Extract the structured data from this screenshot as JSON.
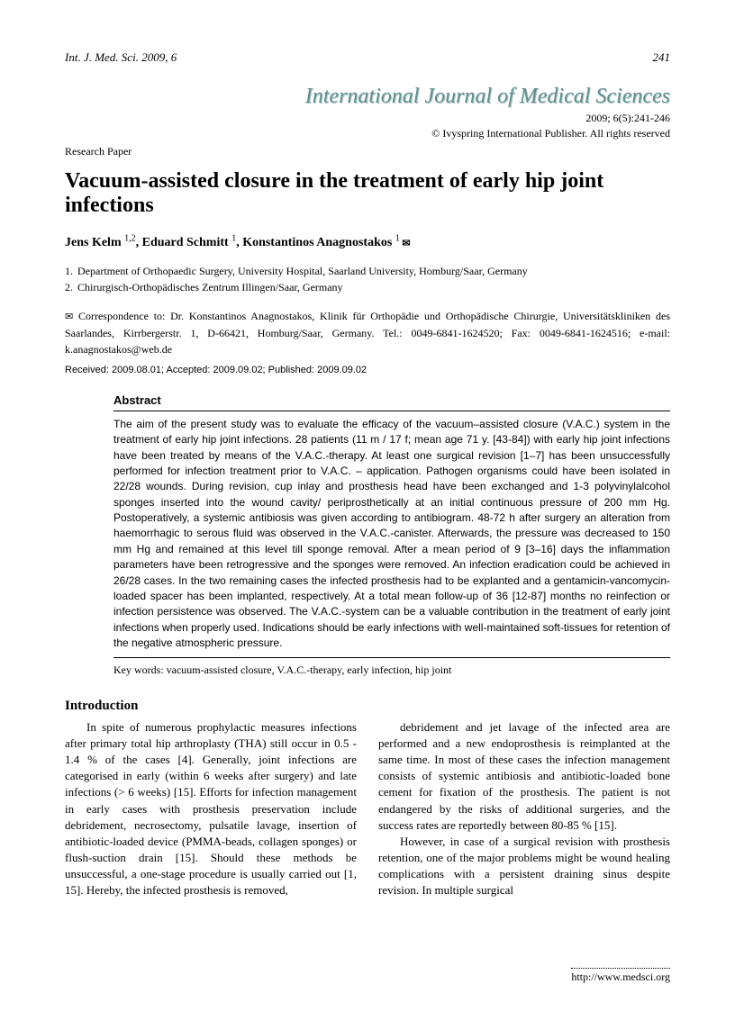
{
  "header": {
    "running_head": "Int. J. Med. Sci. 2009, 6",
    "page_number": "241"
  },
  "journal": {
    "title": "International Journal of Medical Sciences",
    "citation": "2009; 6(5):241-246",
    "copyright": "© Ivyspring International Publisher. All rights reserved"
  },
  "paper_type": "Research Paper",
  "article_title": "Vacuum-assisted closure in the treatment of early hip joint infections",
  "authors_html": "Jens Kelm <sup>1,2</sup>, Eduard Schmitt <sup>1</sup>, Konstantinos Anagnostakos <sup>1</sup>",
  "envelope_glyph": "✉",
  "affiliations": [
    "Department of Orthopaedic Surgery, University Hospital, Saarland University, Homburg/Saar, Germany",
    "Chirurgisch-Orthopädisches Zentrum Illingen/Saar, Germany"
  ],
  "correspondence": "Correspondence to: Dr. Konstantinos Anagnostakos, Klinik für Orthopädie und Orthopädische Chirurgie, Universitätskliniken des Saarlandes, Kirrbergerstr. 1, D-66421, Homburg/Saar, Germany. Tel.: 0049-6841-1624520; Fax: 0049-6841-1624516; e-mail: k.anagnostakos@web.de",
  "dates": "Received: 2009.08.01; Accepted: 2009.09.02; Published: 2009.09.02",
  "abstract": {
    "heading": "Abstract",
    "text": "The aim of the present study was to evaluate the efficacy of the vacuum–assisted closure (V.A.C.) system in the treatment of early hip joint infections. 28 patients (11 m / 17 f; mean age 71 y. [43-84]) with early hip joint infections have been treated by means of the V.A.C.-therapy. At least one surgical revision [1–7] has been unsuccessfully performed for infection treatment prior to V.A.C. – application. Pathogen organisms could have been isolated in 22/28 wounds. During revision, cup inlay and prosthesis head have been exchanged and 1-3 polyvinylalcohol sponges inserted into the wound cavity/ periprosthetically at an initial continuous pressure of 200 mm Hg. Postoperatively, a systemic antibiosis was given according to antibiogram. 48-72 h after surgery an alteration from haemorrhagic to serous fluid was observed in the V.A.C.-canister. Afterwards, the pressure was decreased to 150 mm Hg and remained at this level till sponge removal. After a mean period of 9 [3–16] days the inflammation parameters have been retrogressive and the sponges were removed. An infection eradication could be achieved in 26/28 cases. In the two remaining cases the infected prosthesis had to be explanted and a gentamicin-vancomycin-loaded spacer has been implanted, respectively. At a total mean follow-up of 36 [12-87] months no reinfection or infection persistence was observed. The V.A.C.-system can be a valuable contribution in the treatment of early joint infections when properly used. Indications should be early infections with well-maintained soft-tissues for retention of the negative atmospheric pressure."
  },
  "keywords": "Key words: vacuum-assisted closure, V.A.C.-therapy, early infection, hip joint",
  "introduction": {
    "heading": "Introduction",
    "p1": "In spite of numerous prophylactic measures infections after primary total hip arthroplasty (THA) still occur in 0.5 - 1.4 % of the cases [4]. Generally, joint infections are categorised in early (within 6 weeks after surgery) and late infections (> 6 weeks) [15]. Efforts for infection management in early cases with prosthesis preservation include debridement, necrosectomy, pulsatile lavage, insertion of antibiotic-loaded device (PMMA-beads, collagen sponges) or flush-suction drain [15]. Should these methods be unsuccessful, a one-stage procedure is usually carried out [1, 15]. Hereby, the infected prosthesis is removed,",
    "p2": "debridement and jet lavage of the infected area are performed and a new endoprosthesis is reimplanted at the same time. In most of these cases the infection management consists of systemic antibiosis and antibiotic-loaded bone cement for fixation of the prosthesis. The patient is not endangered by the risks of additional surgeries, and the success rates are reportedly between 80-85 % [15].",
    "p3": "However, in case of a surgical revision with prosthesis retention, one of the major problems might be wound healing complications with a persistent draining sinus despite revision. In multiple surgical"
  },
  "footer_url": "http://www.medsci.org"
}
